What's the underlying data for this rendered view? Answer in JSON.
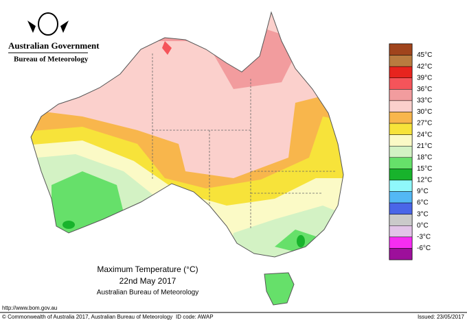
{
  "header": {
    "government": "Australian Government",
    "bureau": "Bureau of Meteorology"
  },
  "map": {
    "title": "Maximum Temperature (°C)",
    "date": "22nd May 2017",
    "source": "Australian Bureau of Meteorology"
  },
  "legend": [
    {
      "label": "45°C",
      "color": "#a0441c"
    },
    {
      "label": "42°C",
      "color": "#b97b3f"
    },
    {
      "label": "39°C",
      "color": "#e7241e"
    },
    {
      "label": "36°C",
      "color": "#f5545a"
    },
    {
      "label": "33°C",
      "color": "#f29c9e"
    },
    {
      "label": "30°C",
      "color": "#fbd0cc"
    },
    {
      "label": "27°C",
      "color": "#f8b64c"
    },
    {
      "label": "24°C",
      "color": "#f7e33a"
    },
    {
      "label": "21°C",
      "color": "#fbfac6"
    },
    {
      "label": "18°C",
      "color": "#d3f2c4"
    },
    {
      "label": "15°C",
      "color": "#66e06a"
    },
    {
      "label": "12°C",
      "color": "#18b32c"
    },
    {
      "label": "9°C",
      "color": "#8ff8fb"
    },
    {
      "label": "6°C",
      "color": "#53b8f5"
    },
    {
      "label": "3°C",
      "color": "#4a66e8"
    },
    {
      "label": "0°C",
      "color": "#cacaca"
    },
    {
      "label": "-3°C",
      "color": "#e2c4e8"
    },
    {
      "label": "-6°C",
      "color": "#f62df2"
    },
    {
      "label": "",
      "color": "#9d0f9b"
    }
  ],
  "footer": {
    "url": "http://www.bom.gov.au",
    "copyright": "© Commonwealth of Australia 2017, Australian Bureau of Meteorology",
    "id_code": "ID code: AWAP",
    "issued": "Issued: 23/05/2017"
  }
}
